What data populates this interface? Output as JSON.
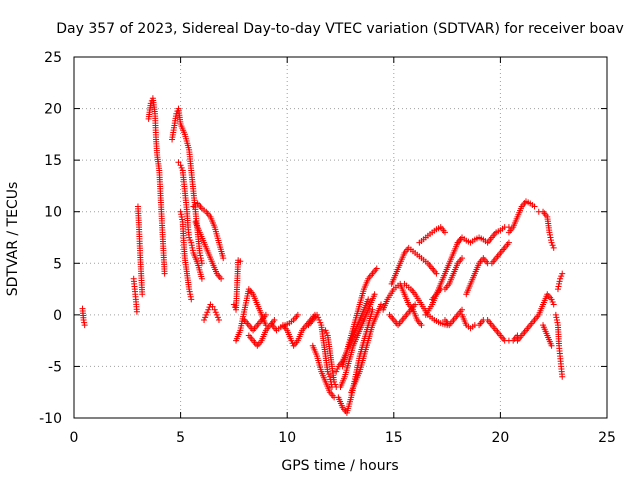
{
  "chart_data": {
    "type": "scatter",
    "title": "Day 357 of 2023, Sidereal Day-to-day VTEC variation (SDTVAR) for receiver boav",
    "xlabel": "GPS time / hours",
    "ylabel": "SDTVAR / TECUs",
    "xlim": [
      0,
      25
    ],
    "ylim": [
      -10,
      25
    ],
    "xticks": [
      0,
      5,
      10,
      15,
      20,
      25
    ],
    "yticks": [
      -10,
      -5,
      0,
      5,
      10,
      15,
      20,
      25
    ],
    "grid": true,
    "marker": "+",
    "color": "#ff0000",
    "tracks": [
      [
        [
          0.4,
          0.6
        ],
        [
          0.45,
          -0.5
        ],
        [
          0.5,
          -1.0
        ]
      ],
      [
        [
          2.8,
          3.5
        ],
        [
          2.85,
          2.5
        ],
        [
          2.9,
          1.5
        ],
        [
          2.95,
          0.3
        ]
      ],
      [
        [
          3.0,
          10.5
        ],
        [
          3.05,
          8.5
        ],
        [
          3.1,
          6.0
        ],
        [
          3.15,
          4.0
        ],
        [
          3.2,
          2.0
        ]
      ],
      [
        [
          3.5,
          19.0
        ],
        [
          3.6,
          20.5
        ],
        [
          3.7,
          21.0
        ],
        [
          3.8,
          19.5
        ],
        [
          3.85,
          17.0
        ],
        [
          3.9,
          15.5
        ],
        [
          4.0,
          14.0
        ],
        [
          4.05,
          12.0
        ],
        [
          4.1,
          10.0
        ],
        [
          4.15,
          8.0
        ],
        [
          4.2,
          6.0
        ],
        [
          4.25,
          4.0
        ]
      ],
      [
        [
          4.6,
          17.0
        ],
        [
          4.8,
          19.5
        ],
        [
          4.9,
          20.0
        ],
        [
          5.0,
          18.5
        ],
        [
          5.2,
          17.5
        ],
        [
          5.4,
          16.0
        ],
        [
          5.5,
          14.0
        ],
        [
          5.6,
          12.0
        ],
        [
          5.7,
          10.0
        ],
        [
          5.8,
          8.0
        ],
        [
          5.9,
          6.0
        ],
        [
          6.0,
          5.0
        ]
      ],
      [
        [
          4.9,
          14.8
        ],
        [
          5.0,
          14.5
        ],
        [
          5.1,
          14.0
        ],
        [
          5.2,
          12.0
        ],
        [
          5.3,
          10.0
        ],
        [
          5.35,
          8.5
        ],
        [
          5.4,
          7.5
        ],
        [
          5.5,
          7.0
        ],
        [
          5.6,
          6.0
        ],
        [
          5.8,
          5.0
        ],
        [
          6.0,
          3.5
        ]
      ],
      [
        [
          5.0,
          10.0
        ],
        [
          5.1,
          9.0
        ],
        [
          5.15,
          7.0
        ],
        [
          5.2,
          5.5
        ],
        [
          5.3,
          4.0
        ],
        [
          5.4,
          2.5
        ],
        [
          5.5,
          1.5
        ]
      ],
      [
        [
          5.6,
          10.5
        ],
        [
          5.8,
          10.8
        ],
        [
          6.0,
          10.3
        ],
        [
          6.2,
          10.0
        ],
        [
          6.4,
          9.5
        ],
        [
          6.6,
          8.5
        ],
        [
          6.8,
          7.0
        ],
        [
          7.0,
          5.5
        ]
      ],
      [
        [
          5.7,
          9.0
        ],
        [
          5.9,
          8.0
        ],
        [
          6.1,
          7.0
        ],
        [
          6.3,
          6.0
        ],
        [
          6.5,
          5.0
        ],
        [
          6.7,
          4.0
        ],
        [
          6.9,
          3.5
        ]
      ],
      [
        [
          6.1,
          -0.5
        ],
        [
          6.2,
          0.0
        ],
        [
          6.3,
          0.5
        ],
        [
          6.4,
          1.0
        ],
        [
          6.5,
          0.8
        ],
        [
          6.6,
          0.5
        ],
        [
          6.7,
          0.0
        ],
        [
          6.8,
          -0.5
        ]
      ],
      [
        [
          7.5,
          1.0
        ],
        [
          7.6,
          0.5
        ],
        [
          7.7,
          5.3
        ],
        [
          7.8,
          5.2
        ]
      ],
      [
        [
          7.6,
          -2.5
        ],
        [
          7.8,
          -1.5
        ],
        [
          8.0,
          0.5
        ],
        [
          8.2,
          2.5
        ],
        [
          8.4,
          2.0
        ],
        [
          8.6,
          1.0
        ],
        [
          8.8,
          0.0
        ],
        [
          9.0,
          -1.0
        ]
      ],
      [
        [
          8.2,
          -2.0
        ],
        [
          8.4,
          -2.5
        ],
        [
          8.6,
          -3.0
        ],
        [
          8.8,
          -2.5
        ],
        [
          9.0,
          -1.5
        ],
        [
          9.2,
          -1.0
        ],
        [
          9.4,
          -0.5
        ]
      ],
      [
        [
          8.0,
          -0.5
        ],
        [
          8.2,
          -1.0
        ],
        [
          8.4,
          -1.5
        ],
        [
          8.6,
          -1.0
        ],
        [
          8.8,
          -0.5
        ],
        [
          9.0,
          0.0
        ]
      ],
      [
        [
          9.3,
          -1.0
        ],
        [
          9.5,
          -1.5
        ],
        [
          9.7,
          -1.2
        ],
        [
          9.9,
          -1.0
        ],
        [
          10.1,
          -0.8
        ],
        [
          10.3,
          -0.5
        ],
        [
          10.5,
          0.0
        ]
      ],
      [
        [
          9.8,
          -1.0
        ],
        [
          10.0,
          -1.5
        ],
        [
          10.2,
          -2.5
        ],
        [
          10.3,
          -3.0
        ],
        [
          10.5,
          -2.5
        ],
        [
          10.7,
          -1.5
        ],
        [
          10.9,
          -1.0
        ],
        [
          11.1,
          -0.5
        ],
        [
          11.3,
          0.0
        ]
      ],
      [
        [
          11.0,
          -1.0
        ],
        [
          11.2,
          -0.5
        ],
        [
          11.4,
          0.0
        ],
        [
          11.5,
          -0.5
        ],
        [
          11.6,
          -1.0
        ],
        [
          11.7,
          -2.5
        ],
        [
          11.8,
          -4.0
        ],
        [
          11.9,
          -5.5
        ],
        [
          12.0,
          -6.0
        ],
        [
          12.1,
          -7.0
        ]
      ],
      [
        [
          11.2,
          -3.0
        ],
        [
          11.4,
          -4.0
        ],
        [
          11.6,
          -5.5
        ],
        [
          11.8,
          -6.5
        ],
        [
          12.0,
          -7.5
        ],
        [
          12.2,
          -8.0
        ]
      ],
      [
        [
          11.8,
          -1.5
        ],
        [
          11.9,
          -2.0
        ],
        [
          12.0,
          -3.5
        ],
        [
          12.1,
          -5.0
        ],
        [
          12.2,
          -6.5
        ],
        [
          12.3,
          -7.0
        ]
      ],
      [
        [
          12.3,
          -5.5
        ],
        [
          12.4,
          -5.0
        ],
        [
          12.6,
          -4.5
        ],
        [
          12.8,
          -3.5
        ],
        [
          13.0,
          -2.5
        ],
        [
          13.2,
          -1.5
        ],
        [
          13.4,
          -0.5
        ],
        [
          13.6,
          0.5
        ],
        [
          13.8,
          1.5
        ]
      ],
      [
        [
          12.4,
          -8.0
        ],
        [
          12.6,
          -9.0
        ],
        [
          12.8,
          -9.5
        ],
        [
          13.0,
          -8.0
        ],
        [
          13.2,
          -6.0
        ],
        [
          13.4,
          -4.0
        ],
        [
          13.6,
          -2.5
        ],
        [
          13.8,
          -1.0
        ],
        [
          14.0,
          0.5
        ]
      ],
      [
        [
          12.5,
          -7.0
        ],
        [
          12.7,
          -6.0
        ],
        [
          12.9,
          -4.5
        ],
        [
          13.1,
          -3.0
        ],
        [
          13.3,
          -2.0
        ],
        [
          13.5,
          -1.0
        ],
        [
          13.7,
          0.0
        ],
        [
          13.9,
          1.0
        ],
        [
          14.1,
          2.0
        ]
      ],
      [
        [
          12.6,
          -5.0
        ],
        [
          12.8,
          -3.5
        ],
        [
          13.0,
          -2.0
        ],
        [
          13.2,
          -0.5
        ],
        [
          13.4,
          1.0
        ],
        [
          13.6,
          2.5
        ],
        [
          13.8,
          3.5
        ],
        [
          14.0,
          4.0
        ],
        [
          14.2,
          4.5
        ]
      ],
      [
        [
          13.0,
          -7.5
        ],
        [
          13.2,
          -6.5
        ],
        [
          13.4,
          -5.5
        ],
        [
          13.6,
          -4.0
        ],
        [
          13.8,
          -2.5
        ],
        [
          14.0,
          -1.0
        ],
        [
          14.2,
          0.0
        ],
        [
          14.4,
          1.0
        ]
      ],
      [
        [
          14.5,
          0.5
        ],
        [
          14.7,
          1.5
        ],
        [
          15.0,
          2.5
        ],
        [
          15.3,
          3.0
        ],
        [
          15.5,
          2.0
        ],
        [
          15.7,
          1.0
        ],
        [
          15.9,
          0.5
        ],
        [
          16.1,
          -0.5
        ],
        [
          16.3,
          -1.0
        ]
      ],
      [
        [
          14.8,
          0.0
        ],
        [
          15.0,
          -0.5
        ],
        [
          15.2,
          -1.0
        ],
        [
          15.4,
          -0.5
        ],
        [
          15.6,
          0.0
        ],
        [
          15.8,
          0.5
        ],
        [
          16.0,
          1.0
        ]
      ],
      [
        [
          14.9,
          3.0
        ],
        [
          15.1,
          4.0
        ],
        [
          15.3,
          5.0
        ],
        [
          15.5,
          6.0
        ],
        [
          15.7,
          6.5
        ],
        [
          16.0,
          6.0
        ],
        [
          16.3,
          5.5
        ],
        [
          16.6,
          5.0
        ],
        [
          16.8,
          4.5
        ],
        [
          17.0,
          4.0
        ]
      ],
      [
        [
          15.5,
          3.0
        ],
        [
          15.8,
          2.5
        ],
        [
          16.0,
          2.0
        ],
        [
          16.3,
          1.0
        ],
        [
          16.6,
          0.0
        ],
        [
          16.9,
          -0.5
        ],
        [
          17.2,
          -0.8
        ],
        [
          17.5,
          -1.0
        ]
      ],
      [
        [
          16.2,
          7.0
        ],
        [
          16.5,
          7.5
        ],
        [
          16.8,
          8.0
        ],
        [
          17.0,
          8.3
        ],
        [
          17.2,
          8.5
        ],
        [
          17.4,
          8.0
        ]
      ],
      [
        [
          16.5,
          0.0
        ],
        [
          16.8,
          1.0
        ],
        [
          17.0,
          2.0
        ],
        [
          17.2,
          3.0
        ],
        [
          17.4,
          4.0
        ],
        [
          17.6,
          5.0
        ],
        [
          17.8,
          6.0
        ],
        [
          18.0,
          7.0
        ],
        [
          18.2,
          7.5
        ]
      ],
      [
        [
          16.8,
          1.5
        ],
        [
          17.0,
          2.0
        ],
        [
          17.2,
          2.5
        ],
        [
          17.4,
          2.5
        ],
        [
          17.6,
          3.0
        ],
        [
          17.8,
          4.0
        ],
        [
          18.0,
          5.0
        ],
        [
          18.2,
          5.5
        ]
      ],
      [
        [
          17.4,
          -0.5
        ],
        [
          17.6,
          -1.0
        ],
        [
          17.8,
          -0.5
        ],
        [
          18.0,
          0.0
        ],
        [
          18.2,
          0.5
        ]
      ],
      [
        [
          18.0,
          7.0
        ],
        [
          18.2,
          7.5
        ],
        [
          18.4,
          7.2
        ],
        [
          18.6,
          7.0
        ],
        [
          18.8,
          7.3
        ],
        [
          19.0,
          7.5
        ],
        [
          19.2,
          7.3
        ],
        [
          19.4,
          7.0
        ],
        [
          19.6,
          7.5
        ],
        [
          19.8,
          8.0
        ],
        [
          20.0,
          8.2
        ],
        [
          20.2,
          8.5
        ],
        [
          20.4,
          8.5
        ]
      ],
      [
        [
          18.2,
          0.0
        ],
        [
          18.4,
          -1.0
        ],
        [
          18.6,
          -1.3
        ],
        [
          18.8,
          -1.0
        ],
        [
          19.0,
          -1.0
        ],
        [
          19.2,
          -0.5
        ],
        [
          19.4,
          -0.5
        ],
        [
          19.6,
          -1.0
        ],
        [
          19.8,
          -1.5
        ],
        [
          20.0,
          -2.0
        ],
        [
          20.2,
          -2.5
        ],
        [
          20.4,
          -2.5
        ],
        [
          20.6,
          -2.5
        ],
        [
          20.8,
          -2.0
        ]
      ],
      [
        [
          18.4,
          2.0
        ],
        [
          18.6,
          3.0
        ],
        [
          18.8,
          4.0
        ],
        [
          19.0,
          5.0
        ],
        [
          19.2,
          5.5
        ],
        [
          19.4,
          5.0
        ],
        [
          19.6,
          5.0
        ],
        [
          19.8,
          5.5
        ],
        [
          20.0,
          6.0
        ],
        [
          20.2,
          6.5
        ],
        [
          20.4,
          7.0
        ]
      ],
      [
        [
          20.4,
          8.0
        ],
        [
          20.6,
          8.5
        ],
        [
          20.8,
          9.5
        ],
        [
          21.0,
          10.5
        ],
        [
          21.2,
          11.0
        ],
        [
          21.4,
          10.8
        ],
        [
          21.6,
          10.5
        ]
      ],
      [
        [
          20.8,
          -2.5
        ],
        [
          21.0,
          -2.0
        ],
        [
          21.2,
          -1.5
        ],
        [
          21.4,
          -1.0
        ],
        [
          21.6,
          -0.5
        ],
        [
          21.8,
          0.0
        ],
        [
          22.0,
          1.0
        ],
        [
          22.2,
          2.0
        ],
        [
          22.4,
          1.5
        ],
        [
          22.5,
          1.0
        ]
      ],
      [
        [
          21.8,
          10.0
        ],
        [
          22.0,
          10.0
        ],
        [
          22.2,
          9.5
        ],
        [
          22.3,
          8.0
        ],
        [
          22.4,
          7.0
        ],
        [
          22.5,
          6.5
        ]
      ],
      [
        [
          22.0,
          -1.0
        ],
        [
          22.2,
          -2.0
        ],
        [
          22.4,
          -3.0
        ]
      ],
      [
        [
          22.6,
          0.0
        ],
        [
          22.7,
          -1.0
        ],
        [
          22.75,
          -3.0
        ],
        [
          22.8,
          -4.0
        ],
        [
          22.85,
          -5.0
        ],
        [
          22.9,
          -6.0
        ]
      ],
      [
        [
          22.7,
          2.5
        ],
        [
          22.8,
          3.5
        ],
        [
          22.9,
          4.0
        ]
      ]
    ]
  }
}
